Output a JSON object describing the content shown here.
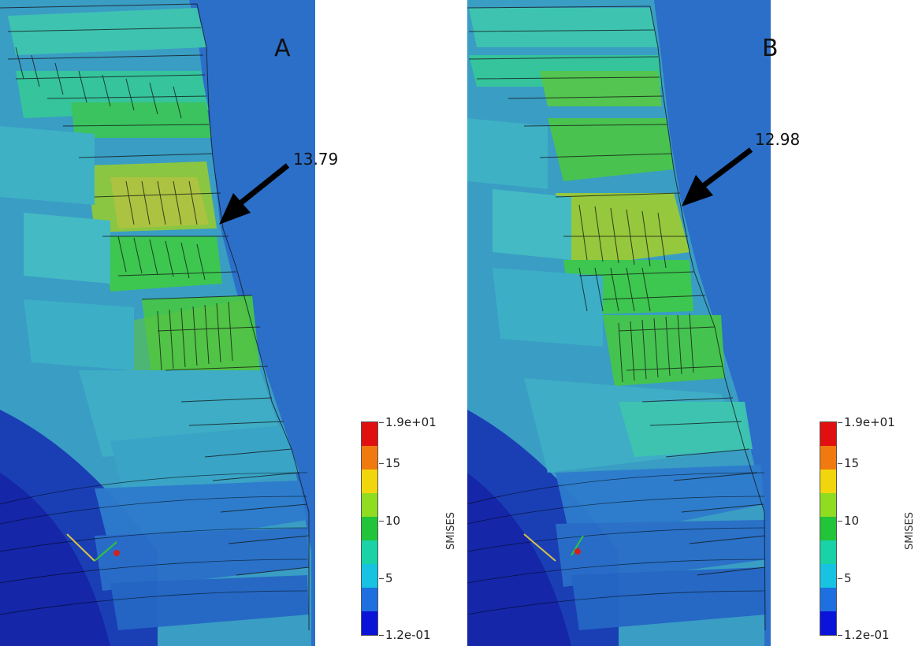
{
  "panels": [
    {
      "id": "A",
      "letter": "A",
      "max_label": "13.79",
      "colorbar": {
        "title": "SMISES",
        "ticks": [
          "1.9e+01",
          "15",
          "10",
          "5",
          "1.2e-01"
        ]
      }
    },
    {
      "id": "B",
      "letter": "B",
      "max_label": "12.98",
      "colorbar": {
        "title": "SMISES",
        "ticks": [
          "1.9e+01",
          "15",
          "10",
          "5",
          "1.2e-01"
        ]
      }
    }
  ],
  "colors": {
    "scale": [
      "#0a14d8",
      "#1e6fe0",
      "#17c3e0",
      "#19d2a6",
      "#22c43a",
      "#8fdc21",
      "#f2d60d",
      "#f07a10",
      "#e01010"
    ],
    "deep_blue": "#1a3fb5",
    "mid_blue": "#2e7ccd",
    "cyan": "#3fb3c6",
    "teal": "#3fc6b0",
    "green": "#3cc84a",
    "yellow_green": "#a6cf2a",
    "mesh_line": "#111111"
  }
}
